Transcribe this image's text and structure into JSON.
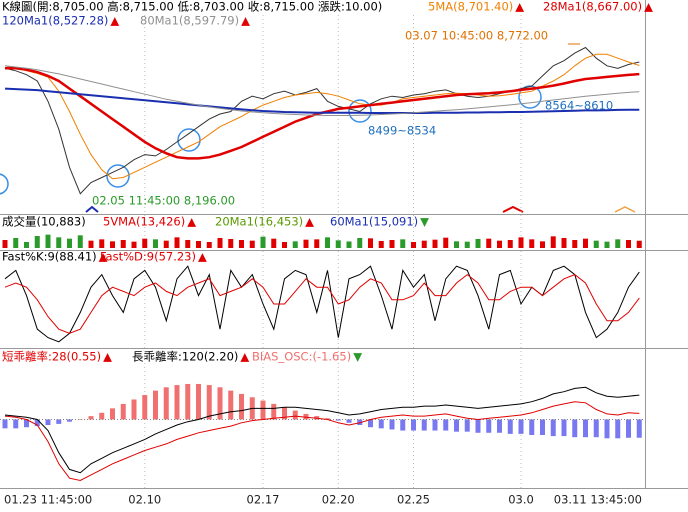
{
  "chart_data": [
    {
      "type": "line",
      "title": "K線圖(開:8,705.00 高:8,715.00 低:8,703.00 收:8,715.00 漲跌:10.00)",
      "ylim": [
        8120,
        8900
      ],
      "color": "#333333",
      "values": [
        8690,
        8680,
        8665,
        8640,
        8560,
        8450,
        8300,
        8196,
        8240,
        8260,
        8280,
        8300,
        8330,
        8350,
        8345,
        8370,
        8400,
        8430,
        8460,
        8490,
        8510,
        8520,
        8560,
        8580,
        8570,
        8590,
        8600,
        8585,
        8595,
        8610,
        8560,
        8540,
        8530,
        8520,
        8550,
        8570,
        8580,
        8575,
        8585,
        8590,
        8600,
        8605,
        8590,
        8580,
        8575,
        8580,
        8590,
        8600,
        8610,
        8620,
        8660,
        8700,
        8720,
        8750,
        8772,
        8730,
        8700,
        8690,
        8705,
        8715
      ],
      "series": [
        {
          "name": "5MA(8,701.40)",
          "trend": "▲",
          "trend_color": "#e00000",
          "color": "#f08000",
          "line_width": 1,
          "values": [
            8700,
            8690,
            8680,
            8670,
            8655,
            8600,
            8520,
            8430,
            8350,
            8290,
            8255,
            8260,
            8280,
            8300,
            8320,
            8340,
            8360,
            8380,
            8400,
            8430,
            8460,
            8480,
            8500,
            8525,
            8545,
            8560,
            8575,
            8585,
            8590,
            8595,
            8590,
            8580,
            8565,
            8550,
            8545,
            8545,
            8555,
            8570,
            8575,
            8580,
            8585,
            8590,
            8592,
            8590,
            8585,
            8580,
            8582,
            8587,
            8593,
            8600,
            8620,
            8640,
            8665,
            8700,
            8730,
            8745,
            8745,
            8730,
            8715,
            8701
          ]
        },
        {
          "name": "28Ma1(8,667.00)",
          "trend": "▲",
          "trend_color": "#e00000",
          "color": "#e00000",
          "line_width": 2.5,
          "values": [
            8690,
            8690,
            8685,
            8675,
            8660,
            8640,
            8610,
            8580,
            8550,
            8520,
            8490,
            8460,
            8430,
            8400,
            8375,
            8355,
            8340,
            8335,
            8335,
            8340,
            8350,
            8365,
            8380,
            8400,
            8420,
            8440,
            8460,
            8480,
            8495,
            8510,
            8520,
            8530,
            8535,
            8540,
            8545,
            8550,
            8555,
            8560,
            8565,
            8570,
            8575,
            8580,
            8585,
            8588,
            8590,
            8592,
            8595,
            8600,
            8605,
            8610,
            8615,
            8622,
            8630,
            8640,
            8648,
            8652,
            8656,
            8660,
            8664,
            8667
          ]
        },
        {
          "name": "120Ma1(8,527.28)",
          "trend": "▲",
          "trend_color": "#e00000",
          "color": "#1a2fb0",
          "line_width": 2,
          "values": [
            8610,
            8608,
            8606,
            8604,
            8600,
            8596,
            8592,
            8588,
            8584,
            8580,
            8576,
            8572,
            8568,
            8564,
            8560,
            8556,
            8552,
            8548,
            8544,
            8540,
            8536,
            8532,
            8528,
            8525,
            8522,
            8520,
            8518,
            8517,
            8516,
            8515,
            8515,
            8515,
            8515,
            8515,
            8514,
            8514,
            8514,
            8514,
            8514,
            8514,
            8515,
            8515,
            8515,
            8516,
            8516,
            8517,
            8517,
            8518,
            8518,
            8519,
            8520,
            8521,
            8522,
            8523,
            8524,
            8524,
            8525,
            8526,
            8527,
            8527
          ]
        },
        {
          "name": "80Ma1(8,597.79)",
          "trend": "▲",
          "trend_color": "#e00000",
          "color": "#909090",
          "line_width": 1,
          "values": [
            8700,
            8695,
            8690,
            8684,
            8676,
            8668,
            8658,
            8648,
            8638,
            8628,
            8618,
            8608,
            8598,
            8588,
            8578,
            8568,
            8560,
            8552,
            8545,
            8538,
            8532,
            8527,
            8522,
            8518,
            8515,
            8512,
            8510,
            8508,
            8506,
            8505,
            8504,
            8504,
            8504,
            8505,
            8506,
            8508,
            8510,
            8512,
            8515,
            8518,
            8521,
            8524,
            8527,
            8530,
            8534,
            8538,
            8542,
            8546,
            8550,
            8555,
            8560,
            8565,
            8570,
            8575,
            8580,
            8584,
            8588,
            8592,
            8595,
            8598
          ]
        }
      ],
      "annotations": [
        {
          "text": "03.07 10:45:00  8,772.00",
          "color": "#e07000"
        },
        {
          "text": "02.05 11:45:00  8,196.00",
          "color": "#2a9a2a"
        },
        {
          "text": "8499~8534",
          "color": "#2070c0"
        },
        {
          "text": "8564~8610",
          "color": "#2070c0"
        }
      ]
    },
    {
      "type": "bar",
      "ylim": [
        0,
        30000
      ],
      "series": [
        {
          "name": "成交量(10,883)",
          "color": "#000000",
          "up_color": "#e00000",
          "down_color": "#2a9a2a",
          "values": [
            12000,
            15000,
            9000,
            18000,
            20000,
            16000,
            14000,
            19000,
            11000,
            13000,
            10000,
            12000,
            9500,
            14000,
            13000,
            11000,
            16000,
            12000,
            10500,
            9000,
            15000,
            13500,
            12000,
            11000,
            17000,
            14000,
            9000,
            10000,
            12500,
            13000,
            16000,
            11500,
            9800,
            15000,
            14500,
            10500,
            12000,
            13000,
            9000,
            11000,
            12500,
            15500,
            10000,
            9500,
            13500,
            14000,
            11000,
            12000,
            16000,
            13000,
            10000,
            17500,
            15000,
            12000,
            14000,
            11000,
            9500,
            13000,
            12000,
            10883
          ]
        }
      ],
      "indicators": [
        {
          "name": "5VMA(13,426)",
          "trend": "▲",
          "trend_color": "#e00000",
          "color": "#e00000"
        },
        {
          "name": "20Ma1(16,453)",
          "trend": "▲",
          "trend_color": "#e00000",
          "color": "#5a9a00"
        },
        {
          "name": "60Ma1(15,091)",
          "trend": "▼",
          "trend_color": "#2a9a2a",
          "color": "#1a2fb0"
        }
      ]
    },
    {
      "type": "line",
      "ylim": [
        0,
        100
      ],
      "series": [
        {
          "name": "Fast%K:9(88.41)",
          "trend": "▲",
          "trend_color": "#e00000",
          "color": "#000000",
          "line_width": 1,
          "values": [
            80,
            90,
            60,
            20,
            10,
            5,
            15,
            40,
            70,
            85,
            60,
            40,
            80,
            90,
            70,
            30,
            80,
            95,
            60,
            85,
            20,
            90,
            70,
            85,
            50,
            20,
            80,
            90,
            85,
            40,
            90,
            10,
            80,
            85,
            95,
            60,
            20,
            90,
            70,
            85,
            30,
            80,
            95,
            90,
            60,
            20,
            85,
            90,
            50,
            70,
            60,
            90,
            95,
            85,
            40,
            10,
            20,
            40,
            70,
            88
          ]
        },
        {
          "name": "Fast%D:9(57.23)",
          "trend": "▲",
          "trend_color": "#e00000",
          "color": "#e00000",
          "line_width": 1,
          "values": [
            70,
            75,
            70,
            55,
            35,
            20,
            15,
            20,
            40,
            60,
            70,
            65,
            60,
            70,
            75,
            65,
            60,
            70,
            75,
            80,
            60,
            65,
            70,
            80,
            70,
            50,
            50,
            65,
            80,
            70,
            70,
            50,
            55,
            70,
            80,
            75,
            55,
            55,
            60,
            75,
            60,
            60,
            75,
            85,
            75,
            55,
            55,
            65,
            70,
            70,
            60,
            70,
            80,
            85,
            75,
            50,
            30,
            30,
            40,
            57
          ]
        }
      ]
    },
    {
      "type": "line",
      "ylim": [
        -6,
        5
      ],
      "categories": [
        "01.23 11:45:00",
        null,
        null,
        null,
        null,
        null,
        null,
        null,
        null,
        null,
        null,
        null,
        null,
        "02.10",
        null,
        null,
        null,
        null,
        null,
        null,
        null,
        null,
        null,
        null,
        "02.17",
        null,
        null,
        null,
        null,
        null,
        null,
        "02.20",
        null,
        null,
        null,
        null,
        null,
        null,
        "02.25",
        null,
        null,
        null,
        null,
        null,
        null,
        null,
        null,
        null,
        "03.0",
        null,
        null,
        null,
        null,
        null,
        null,
        null,
        null,
        null,
        null,
        "03.11 13:45:00"
      ],
      "series": [
        {
          "name": "短乖離率:28(0.55)",
          "trend": "▲",
          "trend_color": "#e00000",
          "color": "#e00000",
          "line_width": 1,
          "values": [
            0.3,
            0.2,
            0,
            -0.5,
            -2,
            -4,
            -5.3,
            -5.5,
            -5,
            -4.5,
            -4,
            -3.6,
            -3.2,
            -2.8,
            -2.5,
            -2.2,
            -1.8,
            -1.5,
            -1.2,
            -1,
            -0.8,
            -0.6,
            -0.3,
            -0.1,
            0,
            0.1,
            0.2,
            0.3,
            0.2,
            0.1,
            0,
            -0.3,
            -0.5,
            -0.3,
            0,
            0.2,
            0.3,
            0.4,
            0.3,
            0.3,
            0.4,
            0.5,
            0.3,
            0.1,
            0,
            0.1,
            0.2,
            0.3,
            0.4,
            0.6,
            0.9,
            1.2,
            1.4,
            1.6,
            1.5,
            0.9,
            0.5,
            0.4,
            0.6,
            0.55
          ]
        },
        {
          "name": "長乖離率:120(2.20)",
          "trend": "▲",
          "trend_color": "#e00000",
          "color": "#000000",
          "line_width": 1,
          "values": [
            0.4,
            0.3,
            0.2,
            0,
            -1,
            -3,
            -4.5,
            -4.8,
            -4,
            -3.5,
            -3,
            -2.6,
            -2.2,
            -1.8,
            -1.3,
            -0.9,
            -0.5,
            -0.2,
            0,
            0.3,
            0.5,
            0.7,
            0.8,
            1,
            1,
            1,
            1.1,
            1.1,
            1,
            0.9,
            0.8,
            0.6,
            0.4,
            0.5,
            0.7,
            0.9,
            1,
            1.1,
            1.1,
            1.2,
            1.2,
            1.3,
            1.2,
            1.1,
            1,
            1.1,
            1.2,
            1.3,
            1.4,
            1.6,
            1.9,
            2.3,
            2.5,
            2.8,
            2.9,
            2.4,
            2.1,
            2,
            2.1,
            2.2
          ]
        },
        {
          "name": "BIAS_OSC:(-1.65)",
          "trend": "▼",
          "trend_color": "#2a9a2a",
          "color": "#f07070",
          "negative_color": "#7878f0",
          "kind": "bar",
          "values": [
            -0.8,
            -0.8,
            -0.7,
            -0.6,
            -0.5,
            -0.4,
            -0.2,
            0,
            0.3,
            0.6,
            1,
            1.4,
            1.8,
            2.2,
            2.6,
            2.9,
            3.1,
            3.2,
            3.2,
            3.1,
            2.9,
            2.6,
            2.3,
            2,
            1.7,
            1.4,
            1.1,
            0.8,
            0.5,
            0.3,
            0.1,
            -0.1,
            -0.3,
            -0.5,
            -0.7,
            -0.8,
            -0.9,
            -1,
            -1,
            -1,
            -1,
            -1,
            -1.1,
            -1.1,
            -1.2,
            -1.2,
            -1.2,
            -1.3,
            -1.3,
            -1.4,
            -1.4,
            -1.5,
            -1.5,
            -1.6,
            -1.6,
            -1.6,
            -1.7,
            -1.7,
            -1.65,
            -1.65
          ]
        }
      ]
    }
  ]
}
